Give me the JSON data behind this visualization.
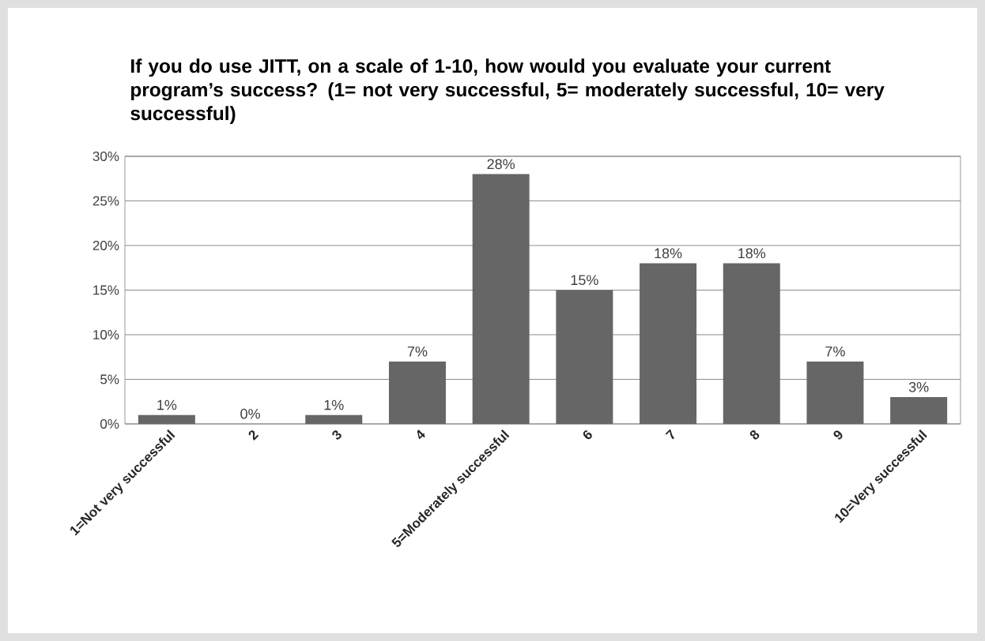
{
  "chart_data": {
    "type": "bar",
    "title": "If you do use JITT, on a scale of 1-10, how would you evaluate your current program’s success? (1= not very successful, 5= moderately successful, 10= very successful)",
    "categories": [
      "1=Not very successful",
      "2",
      "3",
      "4",
      "5=Moderately successful",
      "6",
      "7",
      "8",
      "9",
      "10=Very successful"
    ],
    "values": [
      1,
      0,
      1,
      7,
      28,
      15,
      18,
      18,
      7,
      3
    ],
    "value_labels": [
      "1%",
      "0%",
      "1%",
      "7%",
      "28%",
      "15%",
      "18%",
      "18%",
      "7%",
      "3%"
    ],
    "color": "#666666",
    "ylim": [
      0,
      30
    ],
    "yticks": [
      {
        "value": 0,
        "label": "0%"
      },
      {
        "value": 5,
        "label": "5%"
      },
      {
        "value": 10,
        "label": "10%"
      },
      {
        "value": 15,
        "label": "15%"
      },
      {
        "value": 20,
        "label": "20%"
      },
      {
        "value": 25,
        "label": "25%"
      },
      {
        "value": 30,
        "label": "30%"
      }
    ],
    "grid": "y"
  }
}
